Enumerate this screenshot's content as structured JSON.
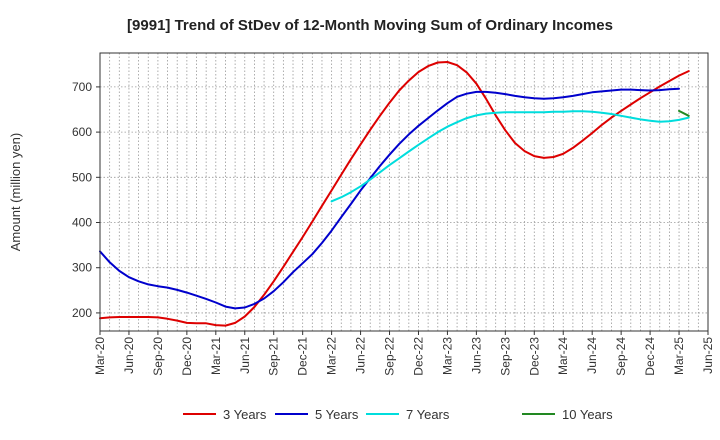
{
  "chart_data": {
    "type": "line",
    "title": "[9991]  Trend of StDev of 12-Month Moving Sum of Ordinary Incomes",
    "xlabel": "",
    "ylabel": "Amount (million yen)",
    "ylim": [
      160,
      775
    ],
    "yticks": [
      200,
      300,
      400,
      500,
      600,
      700
    ],
    "grid": true,
    "legend_position": "bottom",
    "x_tick_labels": [
      "Mar-20",
      "Jun-20",
      "Sep-20",
      "Dec-20",
      "Mar-21",
      "Jun-21",
      "Sep-21",
      "Dec-21",
      "Mar-22",
      "Jun-22",
      "Sep-22",
      "Dec-22",
      "Mar-23",
      "Jun-23",
      "Sep-23",
      "Dec-23",
      "Mar-24",
      "Jun-24",
      "Sep-24",
      "Dec-24",
      "Mar-25",
      "Jun-25"
    ],
    "series": [
      {
        "name": "3 Years",
        "color": "#dd0000",
        "start_index": 0,
        "values": [
          188,
          190,
          191,
          191,
          191,
          191,
          190,
          187,
          183,
          178,
          177,
          177,
          173,
          172,
          178,
          192,
          213,
          240,
          270,
          302,
          335,
          368,
          402,
          437,
          471,
          506,
          540,
          573,
          605,
          636,
          665,
          692,
          714,
          733,
          746,
          754,
          755,
          748,
          732,
          707,
          674,
          637,
          604,
          576,
          558,
          547,
          543,
          545,
          552,
          565,
          581,
          598,
          616,
          632,
          647,
          661,
          675,
          688,
          701,
          713,
          725,
          735
        ]
      },
      {
        "name": "5 Years",
        "color": "#0000cc",
        "start_index": 0,
        "values": [
          336,
          312,
          293,
          279,
          270,
          263,
          259,
          256,
          251,
          245,
          238,
          231,
          223,
          214,
          210,
          212,
          220,
          232,
          248,
          268,
          290,
          310,
          330,
          355,
          382,
          412,
          441,
          471,
          498,
          525,
          550,
          574,
          595,
          614,
          631,
          648,
          664,
          678,
          685,
          689,
          689,
          687,
          684,
          680,
          677,
          675,
          674,
          675,
          677,
          680,
          684,
          688,
          690,
          692,
          694,
          694,
          693,
          692,
          693,
          695,
          696
        ]
      },
      {
        "name": "7 Years",
        "color": "#00dddd",
        "start_index": 24,
        "values": [
          447,
          456,
          467,
          480,
          495,
          511,
          527,
          542,
          557,
          572,
          586,
          600,
          612,
          622,
          631,
          637,
          641,
          643,
          644,
          644,
          644,
          644,
          644,
          645,
          645,
          646,
          646,
          645,
          643,
          640,
          636,
          632,
          628,
          625,
          623,
          624,
          627,
          632
        ]
      },
      {
        "name": "10 Years",
        "color": "#228822",
        "start_index": 60,
        "values": [
          647,
          636
        ]
      }
    ]
  }
}
